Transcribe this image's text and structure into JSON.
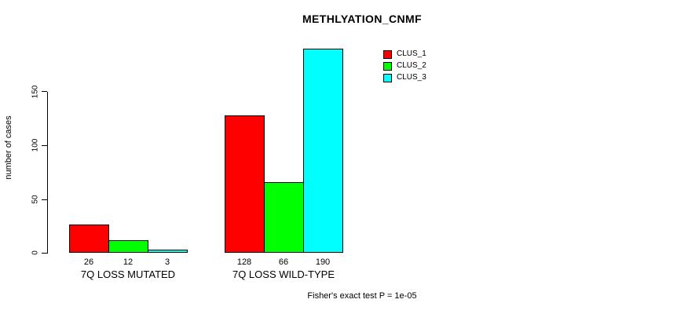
{
  "title": "METHLYATION_CNMF",
  "footer": "Fisher's exact test P = 1e-05",
  "chart_data": {
    "type": "bar",
    "title": "METHLYATION_CNMF",
    "ylabel": "number of cases",
    "categories": [
      "7Q LOSS MUTATED",
      "7Q LOSS WILD-TYPE"
    ],
    "series": [
      {
        "name": "CLUS_1",
        "color": "#ff0000",
        "values": [
          26,
          128
        ]
      },
      {
        "name": "CLUS_2",
        "color": "#00ff00",
        "values": [
          12,
          66
        ]
      },
      {
        "name": "CLUS_3",
        "color": "#00ffff",
        "values": [
          3,
          190
        ]
      }
    ],
    "bar_value_labels": [
      [
        "26",
        "12",
        "3"
      ],
      [
        "128",
        "66",
        "190"
      ]
    ],
    "yticks": [
      0,
      50,
      100,
      150
    ],
    "ylim": [
      0,
      195
    ],
    "grid": false,
    "legend_position": "top-right",
    "annotation": "Fisher's exact test P = 1e-05"
  }
}
